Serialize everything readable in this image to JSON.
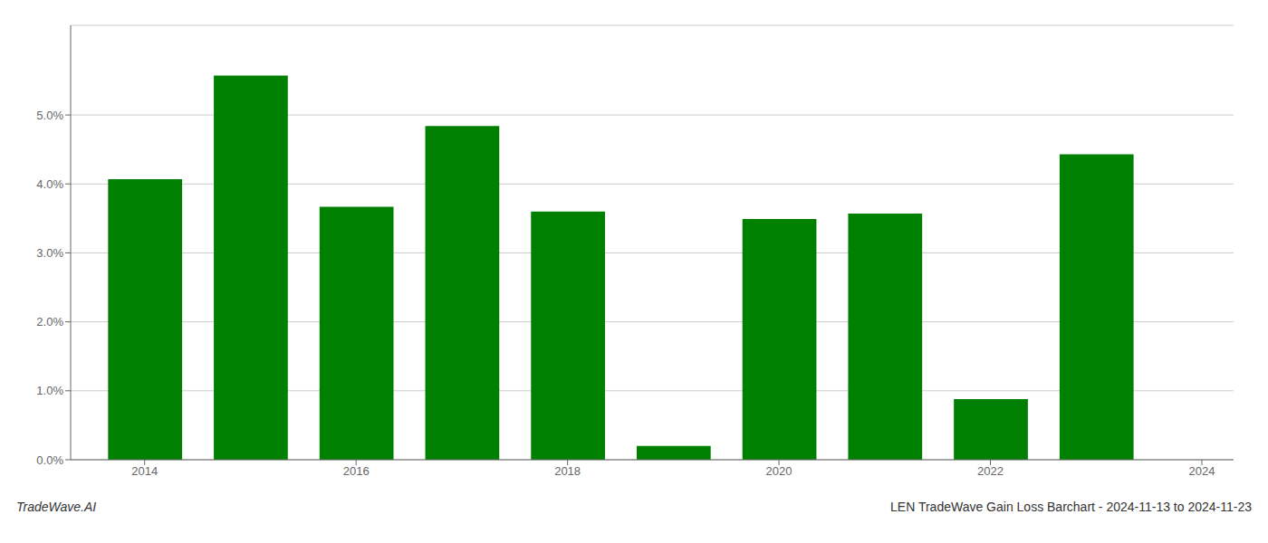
{
  "chart_data": {
    "type": "bar",
    "title": "LEN TradeWave Gain Loss Barchart - 2024-11-13 to 2024-11-23",
    "annotations": [
      "TradeWave.AI"
    ],
    "x": [
      2014,
      2015,
      2016,
      2017,
      2018,
      2019,
      2020,
      2021,
      2022,
      2023
    ],
    "values": [
      0.0407,
      0.0557,
      0.0367,
      0.0484,
      0.036,
      0.002,
      0.0349,
      0.0357,
      0.0088,
      0.0443
    ],
    "color": "#008000",
    "xlim": [
      2013.3,
      2024.3
    ],
    "xticks": [
      2014,
      2016,
      2018,
      2020,
      2022,
      2024
    ],
    "ylim": [
      0,
      0.063
    ],
    "yticks": [
      {
        "value": 0.0,
        "label": "0.0%"
      },
      {
        "value": 0.01,
        "label": "1.0%"
      },
      {
        "value": 0.02,
        "label": "2.0%"
      },
      {
        "value": 0.03,
        "label": "3.0%"
      },
      {
        "value": 0.04,
        "label": "4.0%"
      },
      {
        "value": 0.05,
        "label": "5.0%"
      }
    ],
    "grid": true
  }
}
